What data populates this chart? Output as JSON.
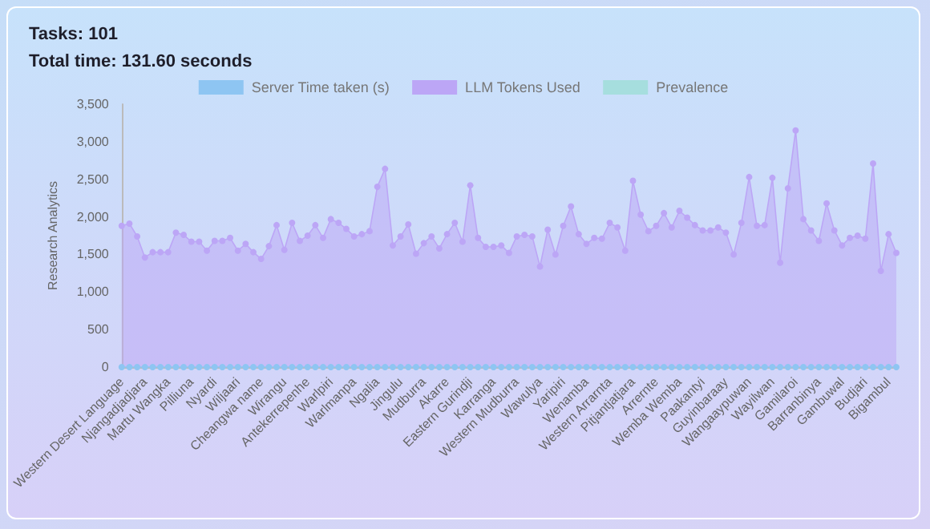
{
  "chart_data": {
    "type": "area",
    "title": "Tasks: 101",
    "subtitle": "Total time: 131.60 seconds",
    "ylabel": "Research Analytics",
    "categories": [
      "Western Desert Language",
      null,
      null,
      "Njangadjadjara",
      null,
      null,
      "Martu Wangka",
      null,
      null,
      "Pilliuna",
      null,
      null,
      "Nyardi",
      null,
      null,
      "Wiljaari",
      null,
      null,
      "Cheangwa name",
      null,
      null,
      "Wirangu",
      null,
      null,
      "Antekerrepenhe",
      null,
      null,
      "Warlpiri",
      null,
      null,
      "Warlmanpa",
      null,
      null,
      "Ngalia",
      null,
      null,
      "Jingulu",
      null,
      null,
      "Mudburra",
      null,
      null,
      "Akarre",
      null,
      null,
      "Eastern Gurindji",
      null,
      null,
      "Karranga",
      null,
      null,
      "Western Mudburra",
      null,
      null,
      "Wawulya",
      null,
      null,
      "Yaripiri",
      null,
      null,
      "Wenamba",
      null,
      null,
      "Western Arrarnta",
      null,
      null,
      "Pitjantjatjara",
      null,
      null,
      "Arrernte",
      null,
      null,
      "Wemba Wemba",
      null,
      null,
      "Paakantyi",
      null,
      null,
      "Guyinbaraay",
      null,
      null,
      "Wangaaypuwan",
      null,
      null,
      "Wayilwan",
      null,
      null,
      "Gamilaroi",
      null,
      null,
      "Barranbinya",
      null,
      null,
      "Gambuwal",
      null,
      null,
      "Budjari",
      null,
      null,
      "Bigambul",
      null
    ],
    "series": [
      {
        "name": "Server Time taken (s)",
        "type": "line",
        "color": "#8ec5f2",
        "values": [
          0,
          0,
          0,
          0,
          0,
          0,
          0,
          0,
          0,
          0,
          0,
          0,
          0,
          0,
          0,
          0,
          0,
          0,
          0,
          0,
          0,
          0,
          0,
          0,
          0,
          0,
          0,
          0,
          0,
          0,
          0,
          0,
          0,
          0,
          0,
          0,
          0,
          0,
          0,
          0,
          0,
          0,
          0,
          0,
          0,
          0,
          0,
          0,
          0,
          0,
          0,
          0,
          0,
          0,
          0,
          0,
          0,
          0,
          0,
          0,
          0,
          0,
          0,
          0,
          0,
          0,
          0,
          0,
          0,
          0,
          0,
          0,
          0,
          0,
          0,
          0,
          0,
          0,
          0,
          0,
          0,
          0,
          0,
          0,
          0,
          0,
          0,
          0,
          0,
          0,
          0,
          0,
          0,
          0,
          0,
          0,
          0,
          0,
          0,
          0,
          0
        ]
      },
      {
        "name": "LLM Tokens Used",
        "color": "#bca6f6",
        "values": [
          1880,
          1910,
          1740,
          1460,
          1530,
          1530,
          1530,
          1790,
          1760,
          1670,
          1670,
          1550,
          1680,
          1680,
          1720,
          1550,
          1640,
          1530,
          1440,
          1610,
          1890,
          1560,
          1920,
          1680,
          1750,
          1890,
          1720,
          1970,
          1920,
          1840,
          1740,
          1770,
          1810,
          2400,
          2640,
          1620,
          1740,
          1900,
          1510,
          1650,
          1740,
          1580,
          1770,
          1920,
          1670,
          2420,
          1720,
          1600,
          1600,
          1620,
          1520,
          1740,
          1760,
          1740,
          1340,
          1830,
          1500,
          1880,
          2140,
          1770,
          1640,
          1720,
          1710,
          1920,
          1860,
          1550,
          2480,
          2030,
          1810,
          1880,
          2050,
          1860,
          2080,
          1990,
          1890,
          1820,
          1820,
          1860,
          1790,
          1500,
          1920,
          2530,
          1880,
          1890,
          2520,
          1390,
          2380,
          3150,
          1970,
          1820,
          1680,
          2180,
          1820,
          1620,
          1720,
          1750,
          1710,
          2710,
          1280,
          1770,
          1520
        ]
      },
      {
        "name": "Prevalence",
        "color": "#a6dede",
        "values": [
          null,
          null,
          null,
          null,
          null,
          null,
          null,
          null,
          null,
          null,
          null,
          null,
          null,
          null,
          null,
          null,
          null,
          null,
          null,
          null,
          null,
          null,
          null,
          null,
          null,
          null,
          null,
          null,
          null,
          null,
          null,
          null,
          null,
          null,
          null,
          null,
          null,
          null,
          null,
          null,
          null,
          null,
          null,
          null,
          null,
          null,
          null,
          null,
          null,
          null,
          null,
          null,
          null,
          null,
          null,
          null,
          null,
          null,
          null,
          null,
          null,
          null,
          null,
          null,
          null,
          null,
          null,
          null,
          null,
          null,
          null,
          null,
          null,
          null,
          null,
          null,
          null,
          null,
          null,
          null,
          null,
          null,
          null,
          null,
          null,
          null,
          null,
          null,
          null,
          null,
          null,
          null,
          null,
          null,
          null,
          null,
          null,
          null,
          null,
          null,
          null
        ]
      }
    ],
    "ylim": [
      0,
      3500
    ],
    "yticks": [
      0,
      500,
      {
        "value": 1000,
        "label": "1,000"
      },
      {
        "value": 1500,
        "label": "1,500"
      },
      {
        "value": 2000,
        "label": "2,000"
      },
      {
        "value": 2500,
        "label": "2,500"
      },
      {
        "value": 3000,
        "label": "3,000"
      },
      {
        "value": 3500,
        "label": "3,500"
      }
    ],
    "grid": false,
    "legend": "top",
    "marker": "circle"
  }
}
